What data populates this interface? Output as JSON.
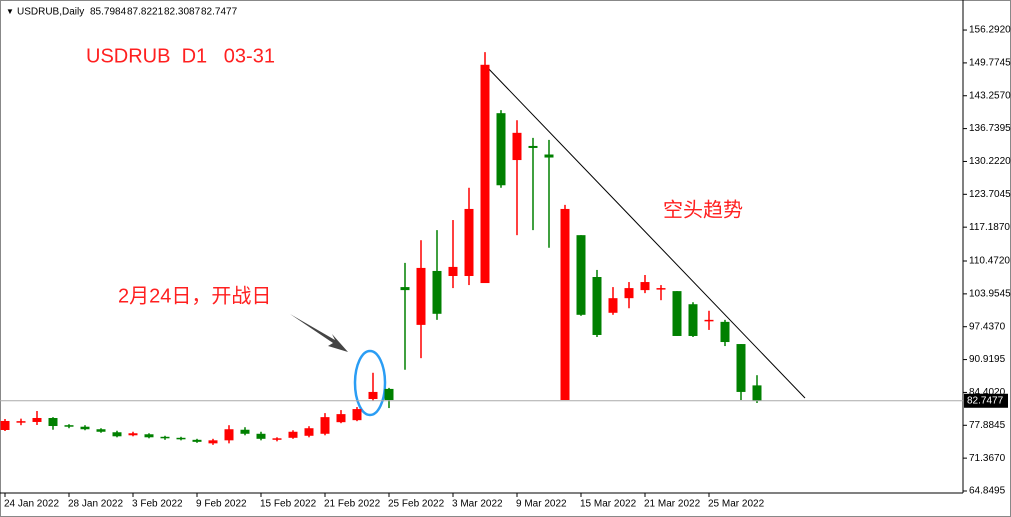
{
  "chart_data": {
    "type": "candlestick",
    "header": "USDRUB,Daily",
    "title": "USDRUB  D1   03-31",
    "annotations": [
      "空头趋势",
      "2月24日，开战日"
    ],
    "categories": [
      "24 Jan 2022",
      null,
      null,
      null,
      "28 Jan 2022",
      null,
      null,
      null,
      "3 Feb 2022",
      null,
      null,
      null,
      "9 Feb 2022",
      null,
      null,
      null,
      "15 Feb 2022",
      null,
      null,
      null,
      "21 Feb 2022",
      null,
      null,
      null,
      "25 Feb 2022",
      null,
      null,
      null,
      "3 Mar 2022",
      null,
      null,
      null,
      "9 Mar 2022",
      null,
      null,
      null,
      "15 Mar 2022",
      null,
      null,
      null,
      "21 Mar 2022",
      null,
      null,
      null,
      "25 Mar 2022",
      null,
      null,
      null
    ],
    "open": [
      76.95,
      78.4,
      78.54,
      79.33,
      77.9,
      77.6,
      77.1,
      76.5,
      75.9,
      76.1,
      75.6,
      75.4,
      75.0,
      74.3,
      74.9,
      77.0,
      76.2,
      75.1,
      75.4,
      75.8,
      76.2,
      78.5,
      78.9,
      83.1,
      85.1,
      105.3,
      97.8,
      108.5,
      107.5,
      107.5,
      106.1,
      139.8,
      130.5,
      133.3,
      131.6,
      82.9,
      115.6,
      107.3,
      100.2,
      103.1,
      104.7,
      104.9,
      104.5,
      101.9,
      98.6,
      98.4,
      94.0,
      85.7984
    ],
    "high": [
      79.13,
      79.2,
      80.72,
      79.5,
      78.1,
      77.9,
      77.3,
      76.8,
      76.6,
      76.3,
      75.8,
      75.6,
      75.2,
      75.2,
      77.9,
      77.5,
      76.6,
      75.5,
      76.9,
      77.7,
      80.3,
      80.9,
      81.5,
      88.3,
      85.3,
      110.1,
      114.6,
      116.6,
      118.6,
      125.0,
      151.9,
      140.4,
      138.4,
      134.9,
      134.5,
      121.6,
      115.6,
      108.7,
      105.3,
      106.3,
      107.7,
      105.7,
      104.5,
      102.3,
      100.6,
      98.8,
      94.0,
      87.8221
    ],
    "low": [
      76.75,
      77.9,
      77.94,
      77.0,
      77.3,
      76.9,
      76.4,
      75.5,
      75.7,
      75.3,
      75.0,
      74.9,
      74.4,
      74.0,
      74.3,
      75.9,
      74.9,
      74.7,
      75.2,
      75.5,
      75.9,
      78.3,
      78.7,
      82.8,
      81.3,
      88.9,
      91.2,
      98.8,
      105.1,
      105.7,
      106.1,
      125.0,
      115.6,
      116.6,
      113.1,
      82.9,
      99.6,
      95.4,
      99.8,
      101.1,
      104.1,
      102.7,
      95.6,
      95.4,
      96.8,
      93.6,
      82.9,
      82.3087
    ],
    "close": [
      78.74,
      78.7,
      79.33,
      77.74,
      77.6,
      77.1,
      76.6,
      75.7,
      76.3,
      75.5,
      75.3,
      75.1,
      74.6,
      74.9,
      77.1,
      76.2,
      75.2,
      75.3,
      76.6,
      77.3,
      79.5,
      80.1,
      81.1,
      84.5,
      82.9,
      104.7,
      109.1,
      100.0,
      109.3,
      120.8,
      149.4,
      125.5,
      135.9,
      132.9,
      131.0,
      120.8,
      99.8,
      95.8,
      103.1,
      105.1,
      106.3,
      105.1,
      95.6,
      95.6,
      98.8,
      94.4,
      84.5,
      82.7477
    ],
    "up_color": "#ff0000",
    "down_color": "#008000",
    "ylim": [
      64.45,
      161.26
    ],
    "yticks": [
      {
        "value": 156.292,
        "label": "156.2920"
      },
      {
        "value": 149.7745,
        "label": "149.7745"
      },
      {
        "value": 143.257,
        "label": "143.2570"
      },
      {
        "value": 136.7395,
        "label": "136.7395"
      },
      {
        "value": 130.222,
        "label": "130.2220"
      },
      {
        "value": 123.7045,
        "label": "123.7045"
      },
      {
        "value": 117.187,
        "label": "117.1870"
      },
      {
        "value": 110.472,
        "label": "110.4720"
      },
      {
        "value": 103.9545,
        "label": "103.9545"
      },
      {
        "value": 97.437,
        "label": "97.4370"
      },
      {
        "value": 90.9195,
        "label": "90.9195"
      },
      {
        "value": 84.402,
        "label": "84.4020"
      },
      {
        "value": 77.8845,
        "label": "77.8845"
      },
      {
        "value": 71.367,
        "label": "71.3670"
      },
      {
        "value": 64.8495,
        "label": "64.8495"
      }
    ]
  }
}
